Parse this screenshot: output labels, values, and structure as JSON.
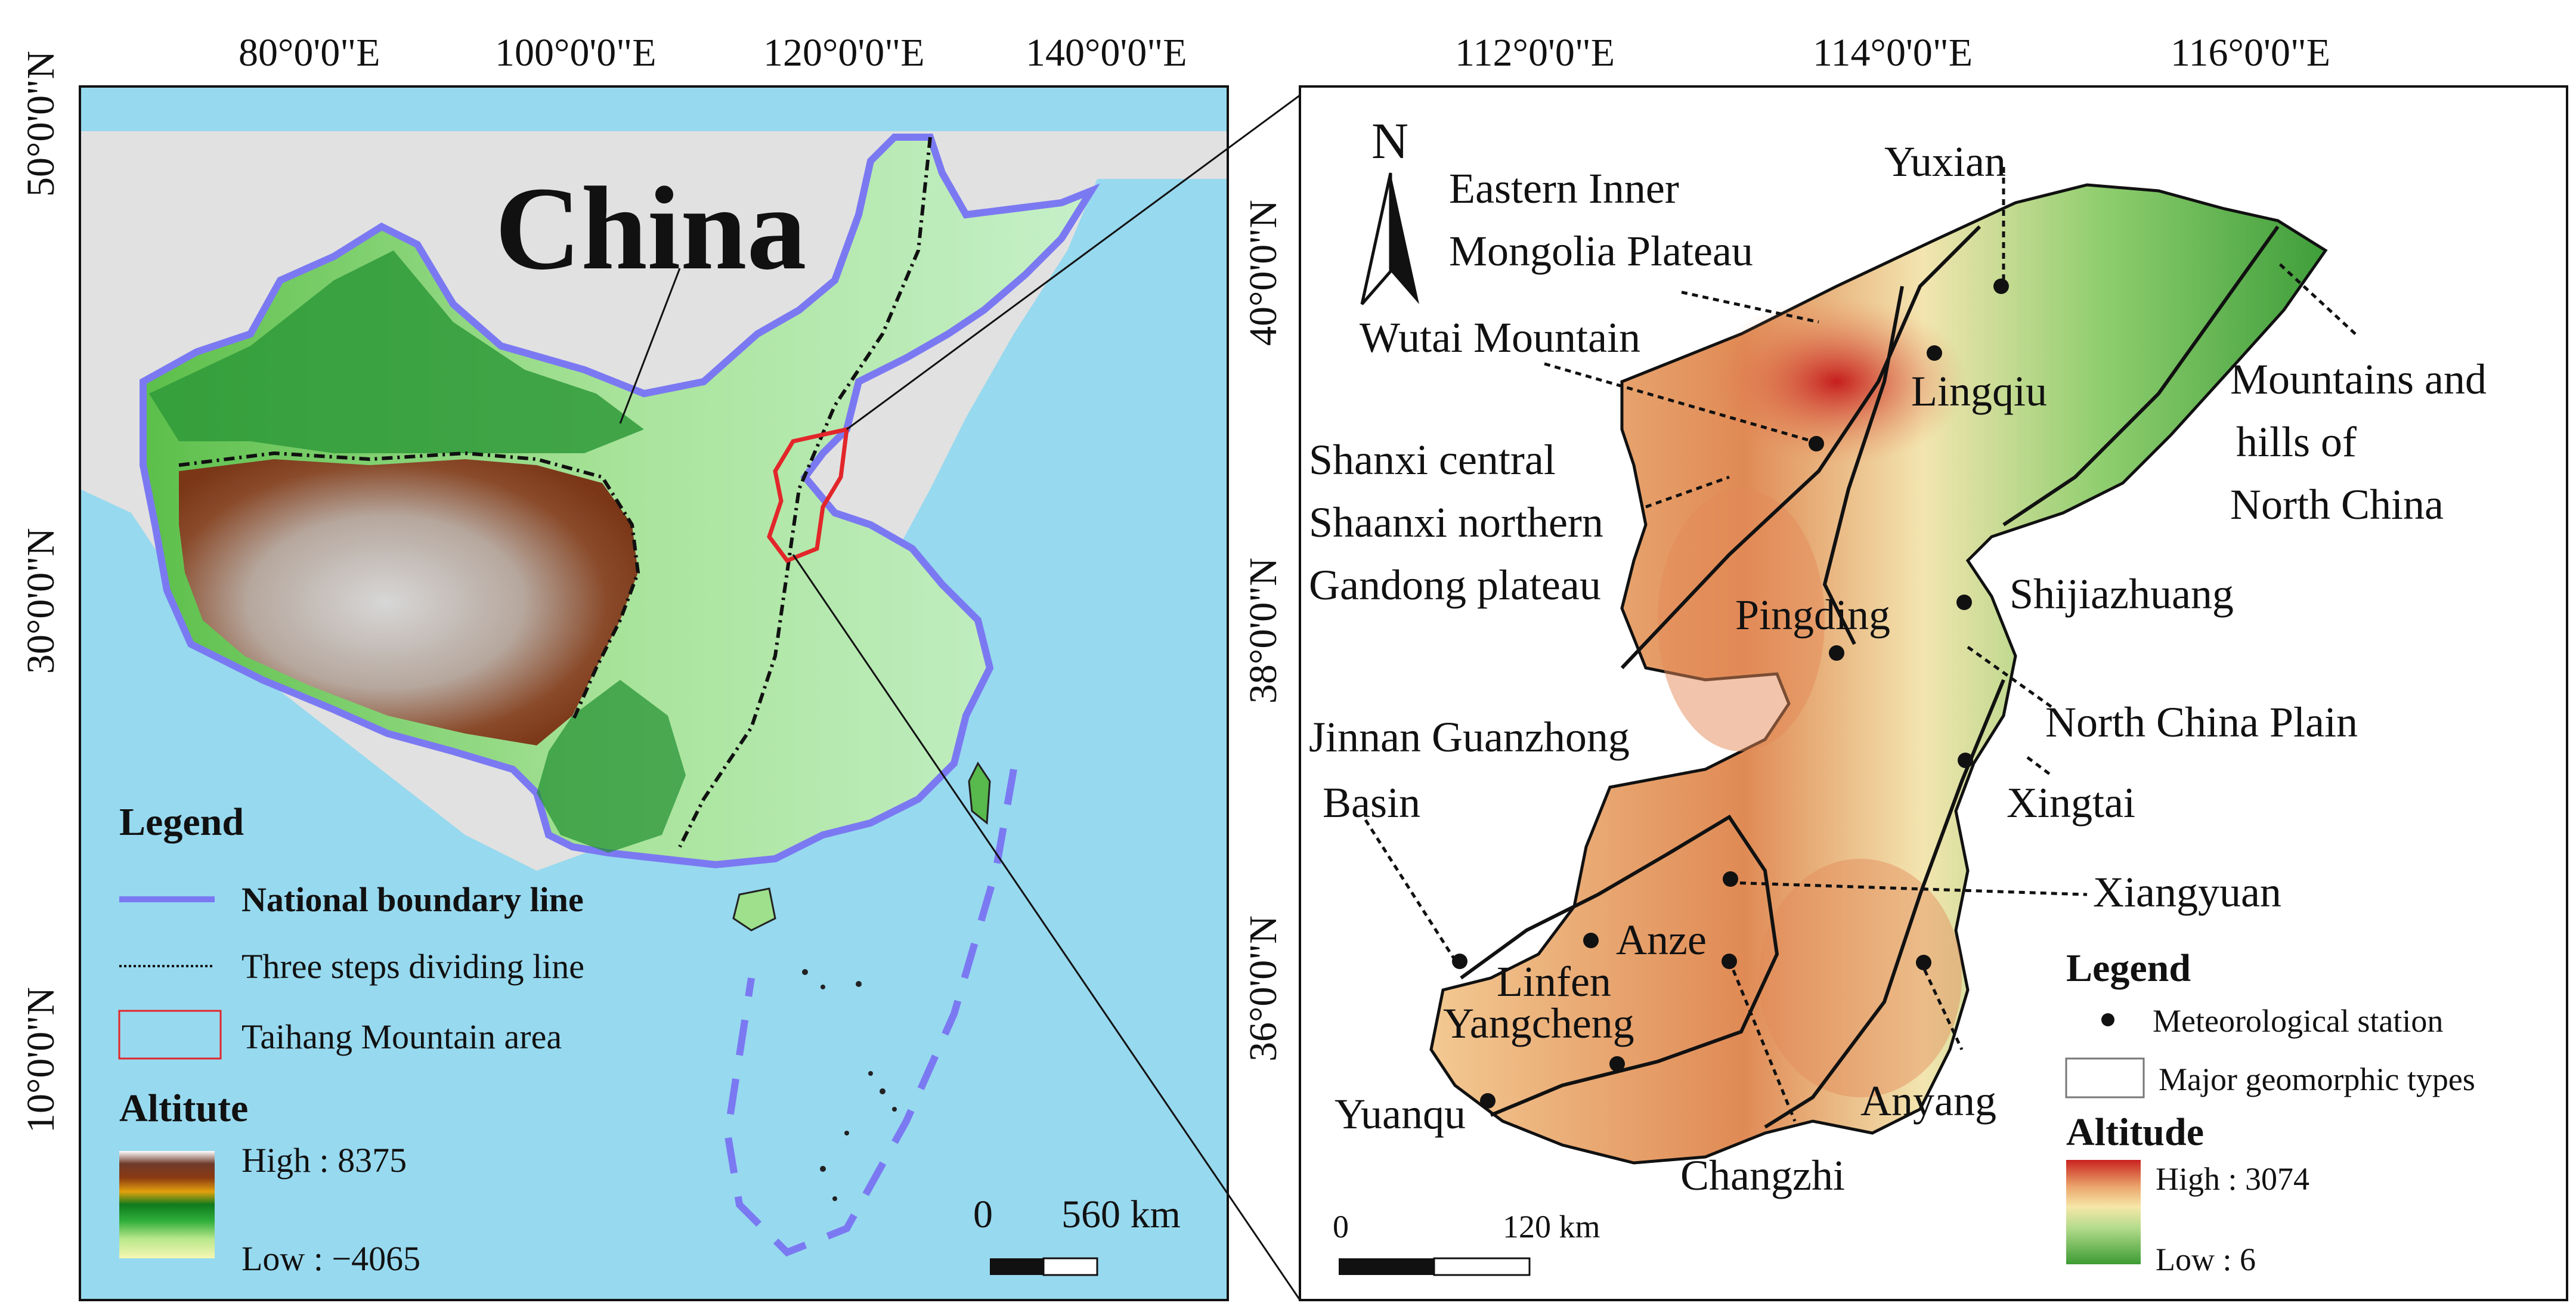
{
  "left_map": {
    "title": "China",
    "top_ticks": [
      "80°0'0\"E",
      "100°0'0\"E",
      "120°0'0\"E",
      "140°0'0\"E"
    ],
    "side_ticks": [
      "50°0'0\"N",
      "30°0'0\"N",
      "10°0'0\"N"
    ],
    "legend": {
      "heading": "Legend",
      "items": [
        {
          "label": "National boundary line",
          "color": "#7b79f2"
        },
        {
          "label": "Three steps dividing line",
          "color": "#111111"
        },
        {
          "label": "Taihang Mountain area",
          "color": "#e2262a"
        }
      ],
      "altitude_heading": "Altitute",
      "high": "High : 8375",
      "low": "Low : −4065"
    },
    "scale": {
      "start": "0",
      "end": "560 km"
    }
  },
  "right_map": {
    "top_ticks": [
      "112°0'0\"E",
      "114°0'0\"E",
      "116°0'0\"E"
    ],
    "side_ticks": [
      "40°0'0\"N",
      "38°0'0\"N",
      "36°0'0\"N"
    ],
    "north": "N",
    "region_labels": [
      "Eastern Inner",
      "Mongolia Plateau",
      "Wutai Mountain",
      "Shanxi central",
      "Shaanxi northern",
      "Gandong plateau",
      "Jinnan Guanzhong",
      "Basin",
      "Mountains and",
      "hills of",
      "North China",
      "North China Plain"
    ],
    "stations": [
      "Yuxian",
      "Lingqiu",
      "Pingding",
      "Shijiazhuang",
      "Xingtai",
      "Xiangyuan",
      "Anze",
      "Linfen",
      "Yangcheng",
      "Yuanqu",
      "Changzhi",
      "Anyang"
    ],
    "legend": {
      "heading": "Legend",
      "station_label": "Meteorological station",
      "geomorph_label": "Major geomorphic types",
      "altitude_heading": "Altitude",
      "high": "High : 3074",
      "low": "Low : 6"
    },
    "scale": {
      "start": "0",
      "end": "120 km"
    }
  },
  "colors": {
    "sea": "#97d9ef",
    "land_bg": "#e1e1e1",
    "boundary": "#7b79f2",
    "taihang": "#e2262a"
  }
}
